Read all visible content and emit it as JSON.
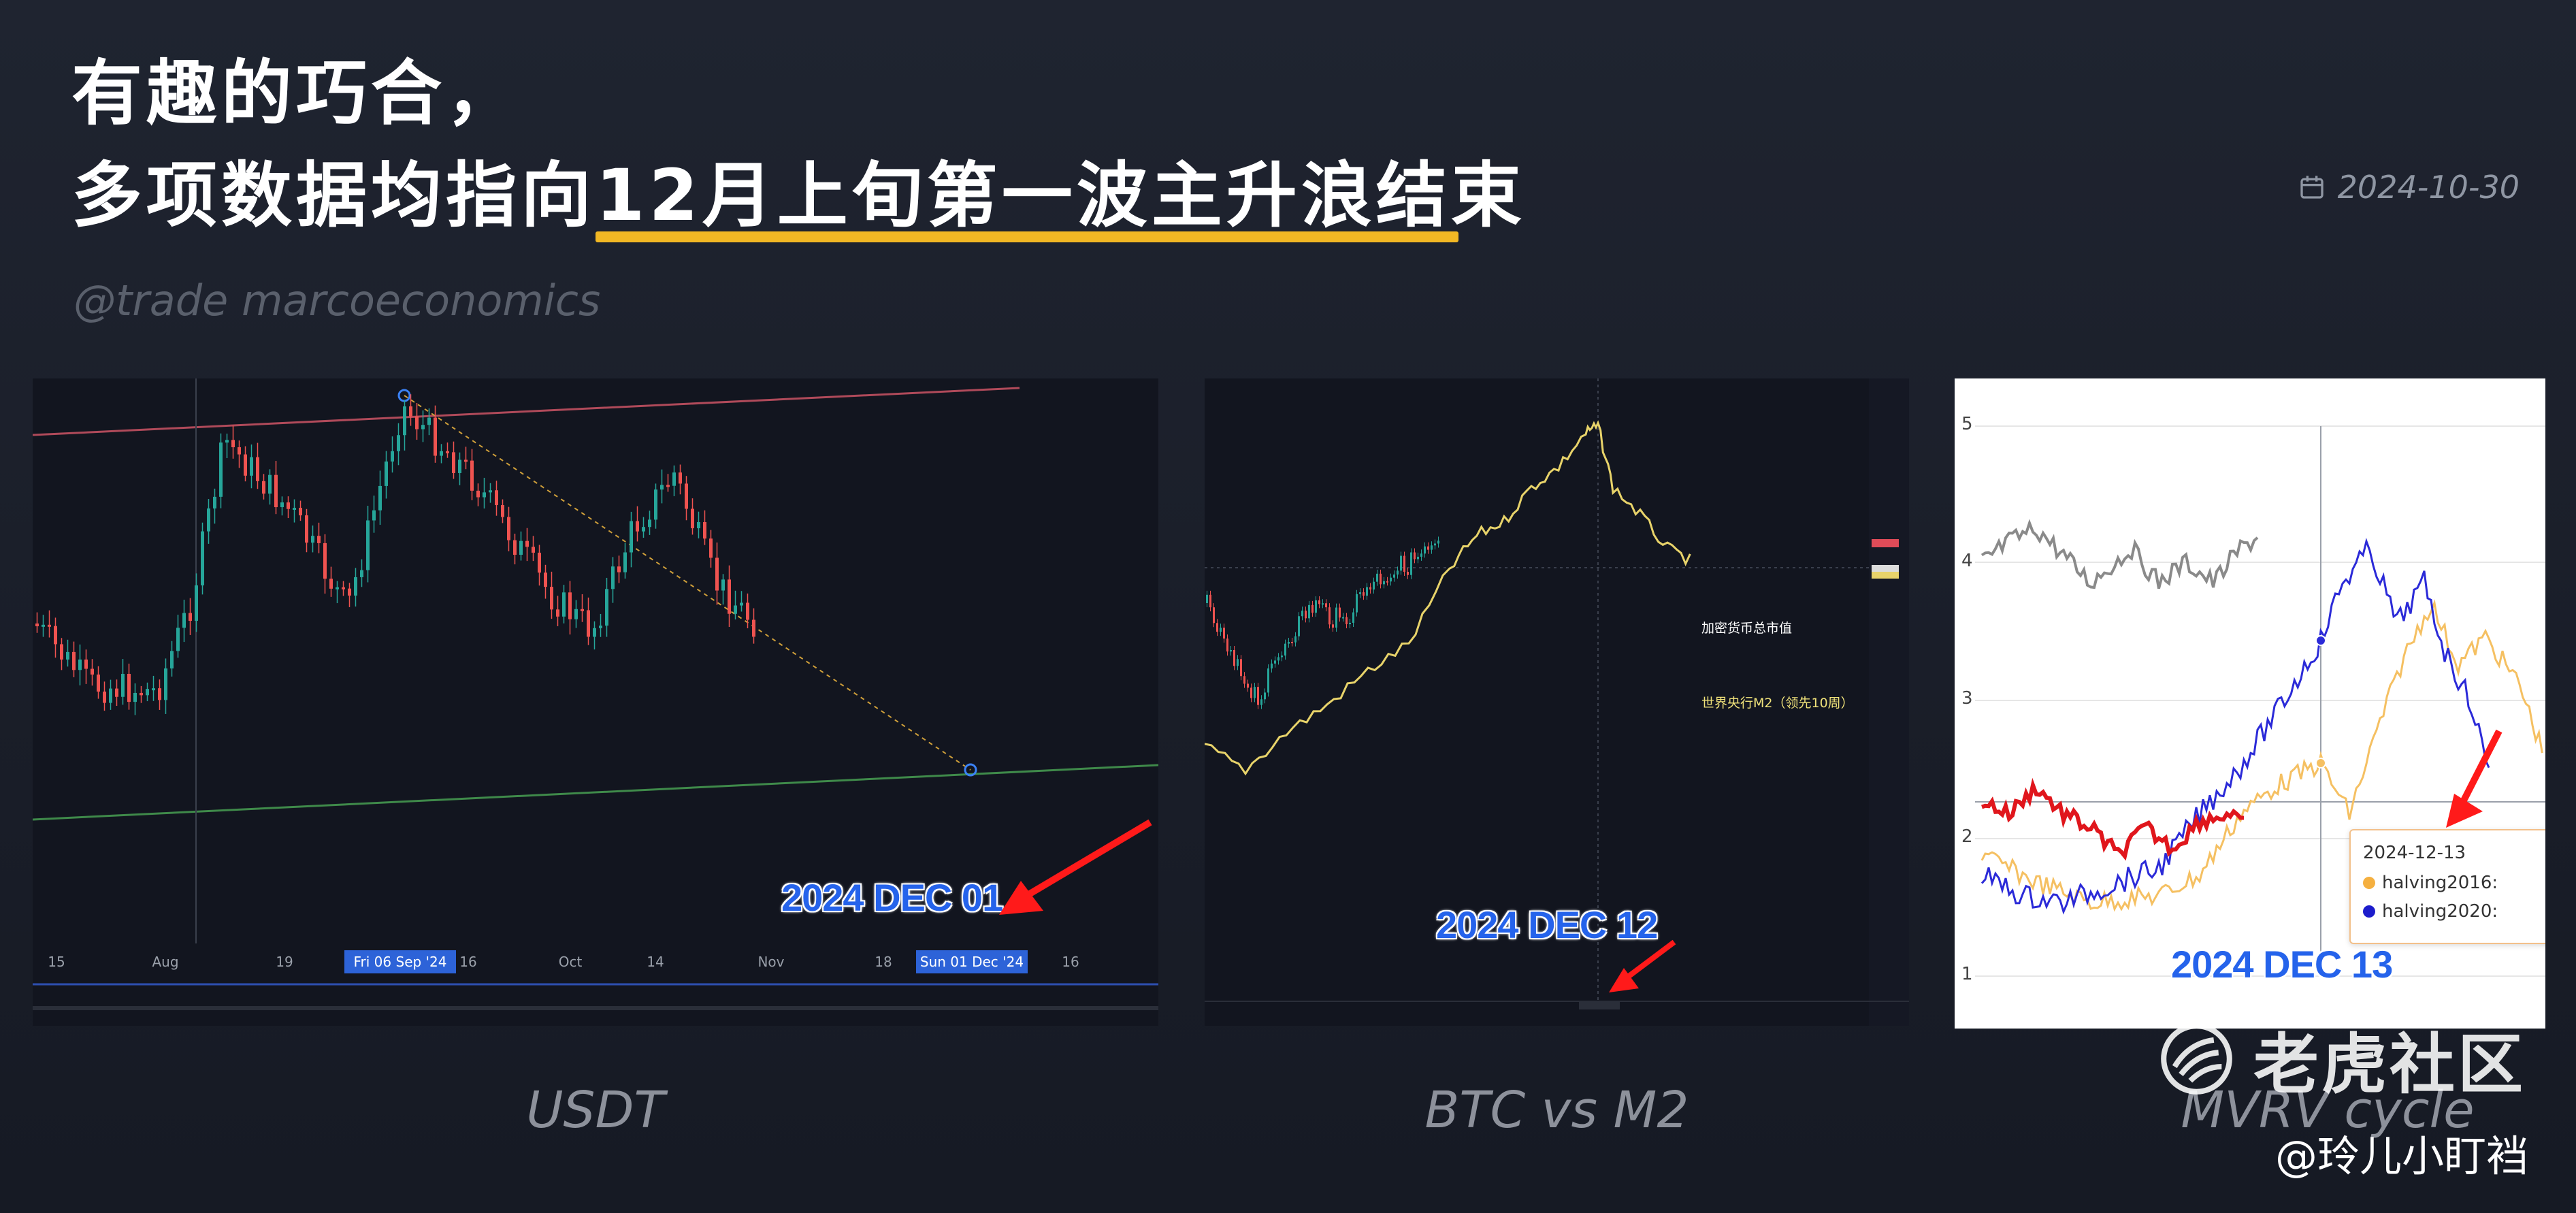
{
  "header": {
    "title_line1": "有趣的巧合，",
    "title_line2": "多项数据均指向12月上旬第一波主升浪结束",
    "date": "2024-10-30",
    "subtitle": "@trade marcoeconomics",
    "colors": {
      "accent": "#f2b824",
      "background": "#1c2130"
    }
  },
  "panels": [
    {
      "caption": "USDT",
      "annotation": "2024 DEC 01",
      "x_ticks": [
        "15",
        "Aug",
        "19",
        "Fri 06 Sep '24",
        "16",
        "Oct",
        "14",
        "Nov",
        "18",
        "Sun 01 Dec '24",
        "16"
      ]
    },
    {
      "caption": "BTC vs M2",
      "annotation": "2024 DEC 12",
      "legend_market_cap": "加密货币总市值",
      "legend_m2": "世界央行M2（领先10周）"
    },
    {
      "caption": "MVRV cycle",
      "annotation": "2024 DEC 13",
      "y_ticks": [
        "5",
        "4",
        "3",
        "2",
        "1"
      ],
      "tooltip": {
        "date": "2024-12-13",
        "series1": "halving2016:",
        "series2": "halving2020:"
      }
    }
  ],
  "watermark": {
    "brand": "老虎社区",
    "handle": "@玲儿小盯裆",
    "icon": "tiger-logo-icon"
  }
}
